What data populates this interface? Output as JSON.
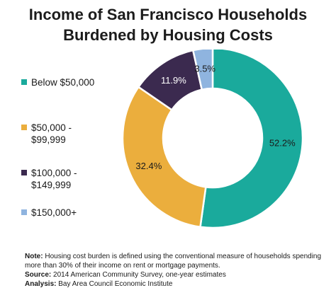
{
  "title": {
    "line1": "Income of San Francisco Households",
    "line2": "Burdened by Housing Costs"
  },
  "legend": [
    {
      "lines": [
        "Below $50,000"
      ],
      "color": "#1aaa9c"
    },
    {
      "lines": [
        "$50,000 -",
        "$99,999"
      ],
      "color": "#ebae3d"
    },
    {
      "lines": [
        "$100,000 -",
        "$149,999"
      ],
      "color": "#3b2a4f"
    },
    {
      "lines": [
        "$150,000+"
      ],
      "color": "#8fb4df"
    }
  ],
  "chart_data": {
    "type": "pie",
    "variant": "donut",
    "categories": [
      "Below $50,000",
      "$50,000 - $99,999",
      "$100,000 - $149,999",
      "$150,000+"
    ],
    "values": [
      52.2,
      32.4,
      11.9,
      3.5
    ],
    "value_labels": [
      "52.2%",
      "32.4%",
      "11.9%",
      "3.5%"
    ],
    "colors": [
      "#1aaa9c",
      "#ebae3d",
      "#3b2a4f",
      "#8fb4df"
    ],
    "title": "Income of San Francisco Households Burdened by Housing Costs",
    "legend_position": "left",
    "start": "top",
    "direction": "clockwise"
  },
  "notes": {
    "note_label": "Note:",
    "note_text": "Housing cost burden is defined using the conventional measure of households spending more than 30% of their income on rent or mortgage payments.",
    "source_label": "Source:",
    "source_text": "2014 American Community Survey, one-year estimates",
    "analysis_label": "Analysis:",
    "analysis_text": "Bay Area Council Economic Institute"
  }
}
